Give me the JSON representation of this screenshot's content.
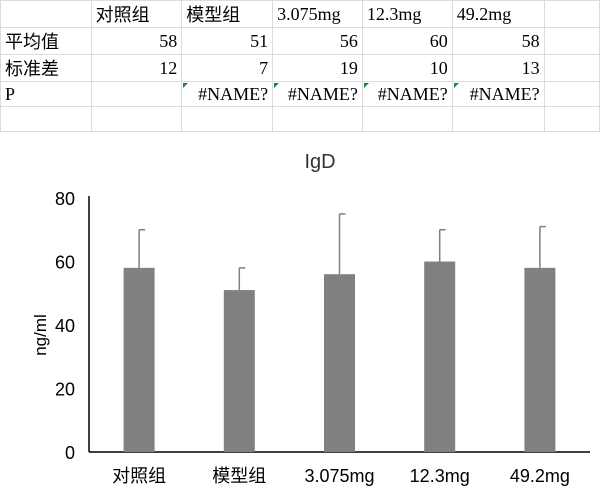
{
  "table": {
    "headers": [
      "",
      "对照组",
      "模型组",
      "3.075mg",
      "12.3mg",
      "49.2mg"
    ],
    "rows": [
      {
        "label": "平均值",
        "values": [
          "58",
          "51",
          "56",
          "60",
          "58"
        ]
      },
      {
        "label": "标准差",
        "values": [
          "12",
          "7",
          "19",
          "10",
          "13"
        ]
      },
      {
        "label": "P",
        "values": [
          "",
          "#NAME?",
          "#NAME?",
          "#NAME?",
          "#NAME?"
        ]
      }
    ]
  },
  "chart_data": {
    "type": "bar",
    "title": "IgD",
    "xlabel": "",
    "ylabel": "ng/ml",
    "categories": [
      "对照组",
      "模型组",
      "3.075mg",
      "12.3mg",
      "49.2mg"
    ],
    "values": [
      58,
      51,
      56,
      60,
      58
    ],
    "errors": [
      12,
      7,
      19,
      10,
      13
    ],
    "ylim": [
      0,
      80
    ],
    "yticks": [
      "0",
      "20",
      "40",
      "60",
      "80"
    ],
    "bar_color": "#808080",
    "grid": false
  }
}
